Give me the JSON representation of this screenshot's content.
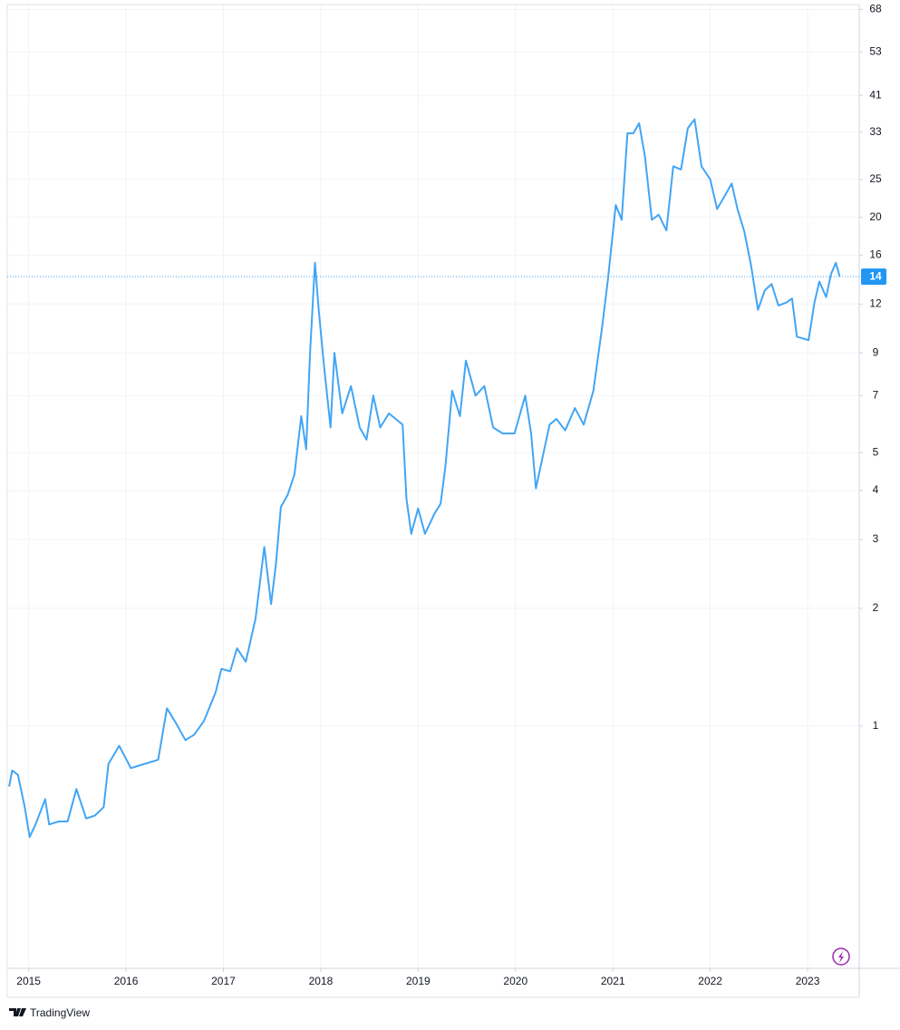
{
  "chart_data": {
    "type": "line",
    "log_scale": true,
    "grid": true,
    "color": "#42a5f5",
    "x": [
      2014.8,
      2014.83,
      2014.89,
      2014.96,
      2015.01,
      2015.07,
      2015.17,
      2015.21,
      2015.31,
      2015.4,
      2015.49,
      2015.59,
      2015.68,
      2015.77,
      2015.82,
      2015.93,
      2016.05,
      2016.19,
      2016.33,
      2016.42,
      2016.52,
      2016.61,
      2016.7,
      2016.8,
      2016.92,
      2016.98,
      2017.07,
      2017.14,
      2017.23,
      2017.33,
      2017.42,
      2017.49,
      2017.54,
      2017.59,
      2017.66,
      2017.73,
      2017.8,
      2017.85,
      2017.89,
      2017.94,
      2017.98,
      2018.03,
      2018.1,
      2018.14,
      2018.22,
      2018.31,
      2018.4,
      2018.47,
      2018.54,
      2018.61,
      2018.7,
      2018.84,
      2018.88,
      2018.93,
      2019.0,
      2019.07,
      2019.17,
      2019.23,
      2019.28,
      2019.35,
      2019.43,
      2019.49,
      2019.59,
      2019.68,
      2019.77,
      2019.87,
      2019.99,
      2020.1,
      2020.16,
      2020.21,
      2020.28,
      2020.35,
      2020.42,
      2020.51,
      2020.61,
      2020.7,
      2020.8,
      2020.89,
      2020.95,
      2021.03,
      2021.09,
      2021.15,
      2021.21,
      2021.27,
      2021.33,
      2021.4,
      2021.47,
      2021.55,
      2021.62,
      2021.7,
      2021.77,
      2021.84,
      2021.91,
      2022.0,
      2022.07,
      2022.14,
      2022.22,
      2022.28,
      2022.35,
      2022.42,
      2022.49,
      2022.56,
      2022.63,
      2022.7,
      2022.78,
      2022.84,
      2022.89,
      2023.01,
      2023.07,
      2023.12,
      2023.19,
      2023.24,
      2023.29,
      2023.33
    ],
    "values": [
      0.7,
      0.77,
      0.75,
      0.62,
      0.52,
      0.56,
      0.65,
      0.56,
      0.57,
      0.57,
      0.69,
      0.58,
      0.59,
      0.62,
      0.8,
      0.89,
      0.78,
      0.8,
      0.82,
      1.11,
      1.01,
      0.92,
      0.95,
      1.03,
      1.22,
      1.4,
      1.38,
      1.58,
      1.46,
      1.88,
      2.87,
      2.05,
      2.6,
      3.63,
      3.9,
      4.4,
      6.2,
      5.1,
      9,
      15.3,
      11.5,
      8.5,
      5.8,
      9,
      6.3,
      7.4,
      5.8,
      5.4,
      7,
      5.8,
      6.3,
      5.9,
      3.8,
      3.1,
      3.6,
      3.1,
      3.5,
      3.7,
      4.6,
      7.2,
      6.2,
      8.6,
      7,
      7.4,
      5.8,
      5.6,
      5.6,
      7,
      5.6,
      4.05,
      4.9,
      5.9,
      6.1,
      5.7,
      6.5,
      5.9,
      7.2,
      10.5,
      13.9,
      21.5,
      19.7,
      32.8,
      32.8,
      34.8,
      28.5,
      19.7,
      20.3,
      18.5,
      27,
      26.5,
      33.8,
      35.6,
      27,
      25,
      21,
      22.5,
      24.4,
      21,
      18.4,
      15,
      11.6,
      13,
      13.5,
      11.9,
      12.1,
      12.4,
      9.9,
      9.7,
      12.1,
      13.7,
      12.5,
      14.3,
      15.3,
      14.1
    ],
    "last_label": "14",
    "xlim": [
      2014.78,
      2023.53
    ],
    "xticks": [
      2015,
      2016,
      2017,
      2018,
      2019,
      2020,
      2021,
      2022,
      2023
    ],
    "ylim": [
      0.24,
      70
    ],
    "yticks": [
      1,
      2,
      3,
      4,
      5,
      7,
      9,
      12,
      16,
      20,
      25,
      33,
      41,
      53,
      68
    ],
    "footer": "TradingView"
  }
}
